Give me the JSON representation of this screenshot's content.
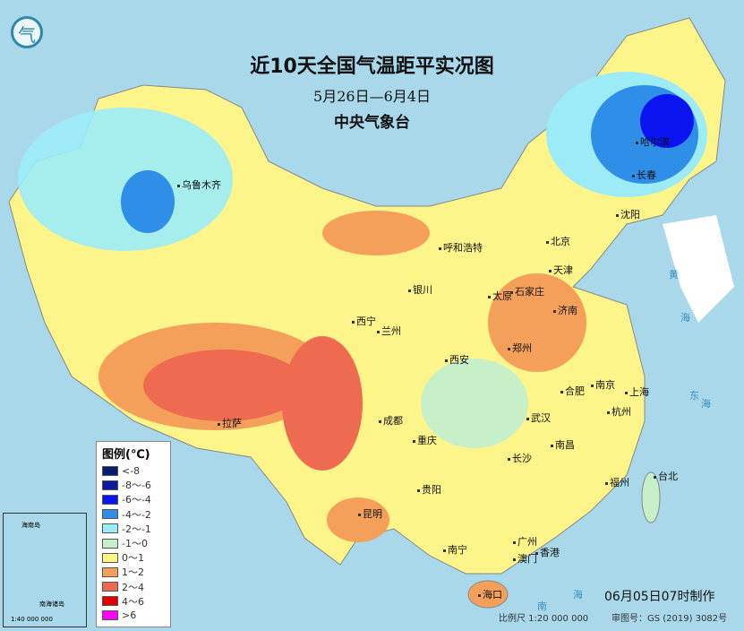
{
  "header": {
    "title": "近10天全国气温距平实况图",
    "date_range": "5月26日—6月4日",
    "agency": "中央气象台"
  },
  "logo": {
    "text": "气"
  },
  "legend": {
    "title": "图例(℃)",
    "items": [
      {
        "label": "<-8",
        "color": "#0a1a6e"
      },
      {
        "label": "-8～-6",
        "color": "#0d1aa0"
      },
      {
        "label": "-6～-4",
        "color": "#0a14f0"
      },
      {
        "label": "-4～-2",
        "color": "#2f8ee8"
      },
      {
        "label": "-2～-1",
        "color": "#9cecf7"
      },
      {
        "label": "-1～0",
        "color": "#c8f0c8"
      },
      {
        "label": "0～1",
        "color": "#fdf685"
      },
      {
        "label": "1～2",
        "color": "#f5a05a"
      },
      {
        "label": "2～4",
        "color": "#ee6a50"
      },
      {
        "label": "4～6",
        "color": "#e00000"
      },
      {
        "label": ">6",
        "color": "#ff00ff"
      }
    ]
  },
  "cities": [
    "乌鲁木齐",
    "哈尔滨",
    "长春",
    "沈阳",
    "北京",
    "天津",
    "呼和浩特",
    "银川",
    "太原",
    "石家庄",
    "济南",
    "西宁",
    "兰州",
    "郑州",
    "西安",
    "合肥",
    "南京",
    "上海",
    "杭州",
    "武汉",
    "成都",
    "重庆",
    "拉萨",
    "南昌",
    "长沙",
    "福州",
    "台北",
    "贵阳",
    "昆明",
    "南宁",
    "广州",
    "香港",
    "澳门",
    "海口"
  ],
  "seas": [
    "黄",
    "海",
    "东",
    "海",
    "南",
    "海"
  ],
  "inset": {
    "label": "南海诸岛",
    "hainan": "海南岛",
    "scale": "1:40 000 000"
  },
  "footer": {
    "made": "06月05日07时制作",
    "scale": "比例尺 1:20 000 000",
    "approval": "审图号：GS (2019) 3082号"
  }
}
